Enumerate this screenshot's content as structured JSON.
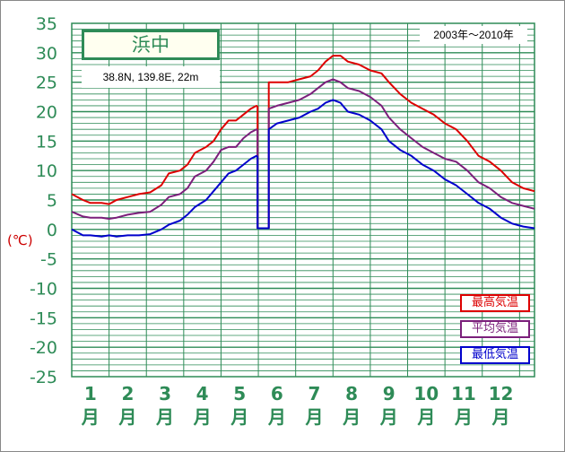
{
  "chart_data": {
    "type": "line",
    "title": "浜中",
    "subtitle": "38.8N,  139.8E,  22m",
    "period": "2003年〜2010年",
    "ylabel": "(℃)",
    "ylim": [
      -25,
      35
    ],
    "yticks": [
      "35",
      "30",
      "25",
      "20",
      "15",
      "10",
      "5",
      "0",
      "-5",
      "-10",
      "-15",
      "-20",
      "-25"
    ],
    "xlim": [
      0.5,
      12.9
    ],
    "categories": [
      "1月",
      "2月",
      "3月",
      "4月",
      "5月",
      "6月",
      "7月",
      "8月",
      "9月",
      "10月",
      "11月",
      "12月"
    ],
    "grid": true,
    "legend_position": "bottom-right",
    "colors": {
      "grid": "#2e8b57",
      "axis_text": "#2e8b57",
      "max": "#dd0000",
      "avg": "#7b1f7b",
      "min": "#0000cc"
    },
    "series": [
      {
        "name": "最高気温",
        "color": "#dd0000",
        "x": [
          0.5,
          0.8,
          1.0,
          1.3,
          1.5,
          1.7,
          2.0,
          2.3,
          2.6,
          2.9,
          3.1,
          3.4,
          3.6,
          3.8,
          4.1,
          4.3,
          4.5,
          4.7,
          4.9,
          5.1,
          5.3,
          5.45,
          5.48,
          5.48,
          5.78,
          5.78,
          6.0,
          6.3,
          6.6,
          6.9,
          7.1,
          7.3,
          7.5,
          7.7,
          7.9,
          8.2,
          8.5,
          8.8,
          9.0,
          9.3,
          9.6,
          9.9,
          10.2,
          10.5,
          10.8,
          11.1,
          11.4,
          11.7,
          12.0,
          12.3,
          12.6,
          12.9
        ],
        "y": [
          6,
          5,
          4.5,
          4.5,
          4.3,
          5,
          5.5,
          6,
          6.3,
          7.5,
          9.5,
          10,
          11,
          13,
          14,
          15,
          17,
          18.5,
          18.5,
          19.5,
          20.5,
          21,
          20.8,
          0.2,
          0.2,
          25,
          25,
          25,
          25.5,
          26,
          27,
          28.5,
          29.5,
          29.5,
          28.5,
          28,
          27,
          26.5,
          25,
          23,
          21.5,
          20.5,
          19.5,
          18,
          17,
          15,
          12.5,
          11.5,
          10,
          8,
          7,
          6.5
        ]
      },
      {
        "name": "平均気温",
        "color": "#7b1f7b",
        "x": [
          0.5,
          0.8,
          1.0,
          1.3,
          1.5,
          1.7,
          2.0,
          2.3,
          2.6,
          2.9,
          3.1,
          3.4,
          3.6,
          3.8,
          4.1,
          4.3,
          4.5,
          4.7,
          4.9,
          5.1,
          5.3,
          5.45,
          5.48,
          5.48,
          5.78,
          5.78,
          6.0,
          6.3,
          6.6,
          6.9,
          7.1,
          7.3,
          7.5,
          7.7,
          7.9,
          8.2,
          8.5,
          8.8,
          9.0,
          9.3,
          9.6,
          9.9,
          10.2,
          10.5,
          10.8,
          11.1,
          11.4,
          11.7,
          12.0,
          12.3,
          12.6,
          12.9
        ],
        "y": [
          3,
          2.2,
          2,
          2,
          1.8,
          2,
          2.5,
          2.8,
          3,
          4.2,
          5.5,
          6,
          7,
          9,
          10,
          11.5,
          13.5,
          14,
          14,
          15.5,
          16.5,
          17,
          16.8,
          0.2,
          0.2,
          20.5,
          21,
          21.5,
          22,
          23,
          24,
          25,
          25.5,
          25,
          24,
          23.5,
          22.5,
          21,
          19,
          17,
          15.5,
          14,
          13,
          12,
          11.5,
          10,
          8,
          7,
          5.5,
          4.5,
          4,
          3.5
        ]
      },
      {
        "name": "最低気温",
        "color": "#0000cc",
        "x": [
          0.5,
          0.8,
          1.0,
          1.3,
          1.5,
          1.7,
          2.0,
          2.3,
          2.6,
          2.9,
          3.1,
          3.4,
          3.6,
          3.8,
          4.1,
          4.3,
          4.5,
          4.7,
          4.9,
          5.1,
          5.3,
          5.45,
          5.48,
          5.48,
          5.78,
          5.78,
          6.0,
          6.3,
          6.6,
          6.9,
          7.1,
          7.3,
          7.5,
          7.7,
          7.9,
          8.2,
          8.5,
          8.8,
          9.0,
          9.3,
          9.6,
          9.9,
          10.2,
          10.5,
          10.8,
          11.1,
          11.4,
          11.7,
          12.0,
          12.3,
          12.6,
          12.9
        ],
        "y": [
          0,
          -1,
          -1,
          -1.2,
          -1,
          -1.2,
          -1,
          -1,
          -0.8,
          0,
          0.8,
          1.5,
          2.5,
          3.8,
          5,
          6.5,
          8,
          9.5,
          10,
          11,
          12,
          12.5,
          12.3,
          0.2,
          0.2,
          17,
          18,
          18.5,
          19,
          20,
          20.5,
          21.5,
          22,
          21.5,
          20,
          19.5,
          18.5,
          17,
          15,
          13.5,
          12.5,
          11,
          10,
          8.5,
          7.5,
          6,
          4.5,
          3.5,
          2,
          1,
          0.5,
          0.2
        ]
      }
    ]
  }
}
